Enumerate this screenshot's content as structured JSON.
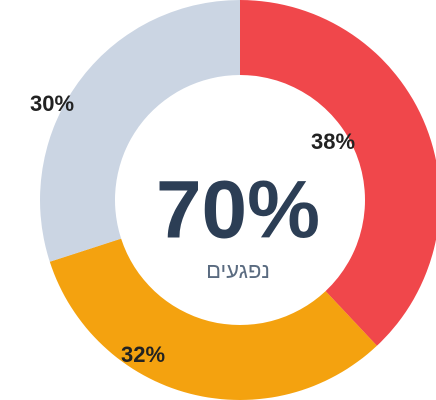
{
  "chart_data": {
    "type": "donut",
    "center_label": "70%",
    "center_sublabel": "נפגעים",
    "values": [
      38,
      32,
      30
    ],
    "value_labels": [
      "38%",
      "32%",
      "30%"
    ],
    "colors": [
      "#f0474b",
      "#f4a20f",
      "#cbd5e3"
    ]
  }
}
